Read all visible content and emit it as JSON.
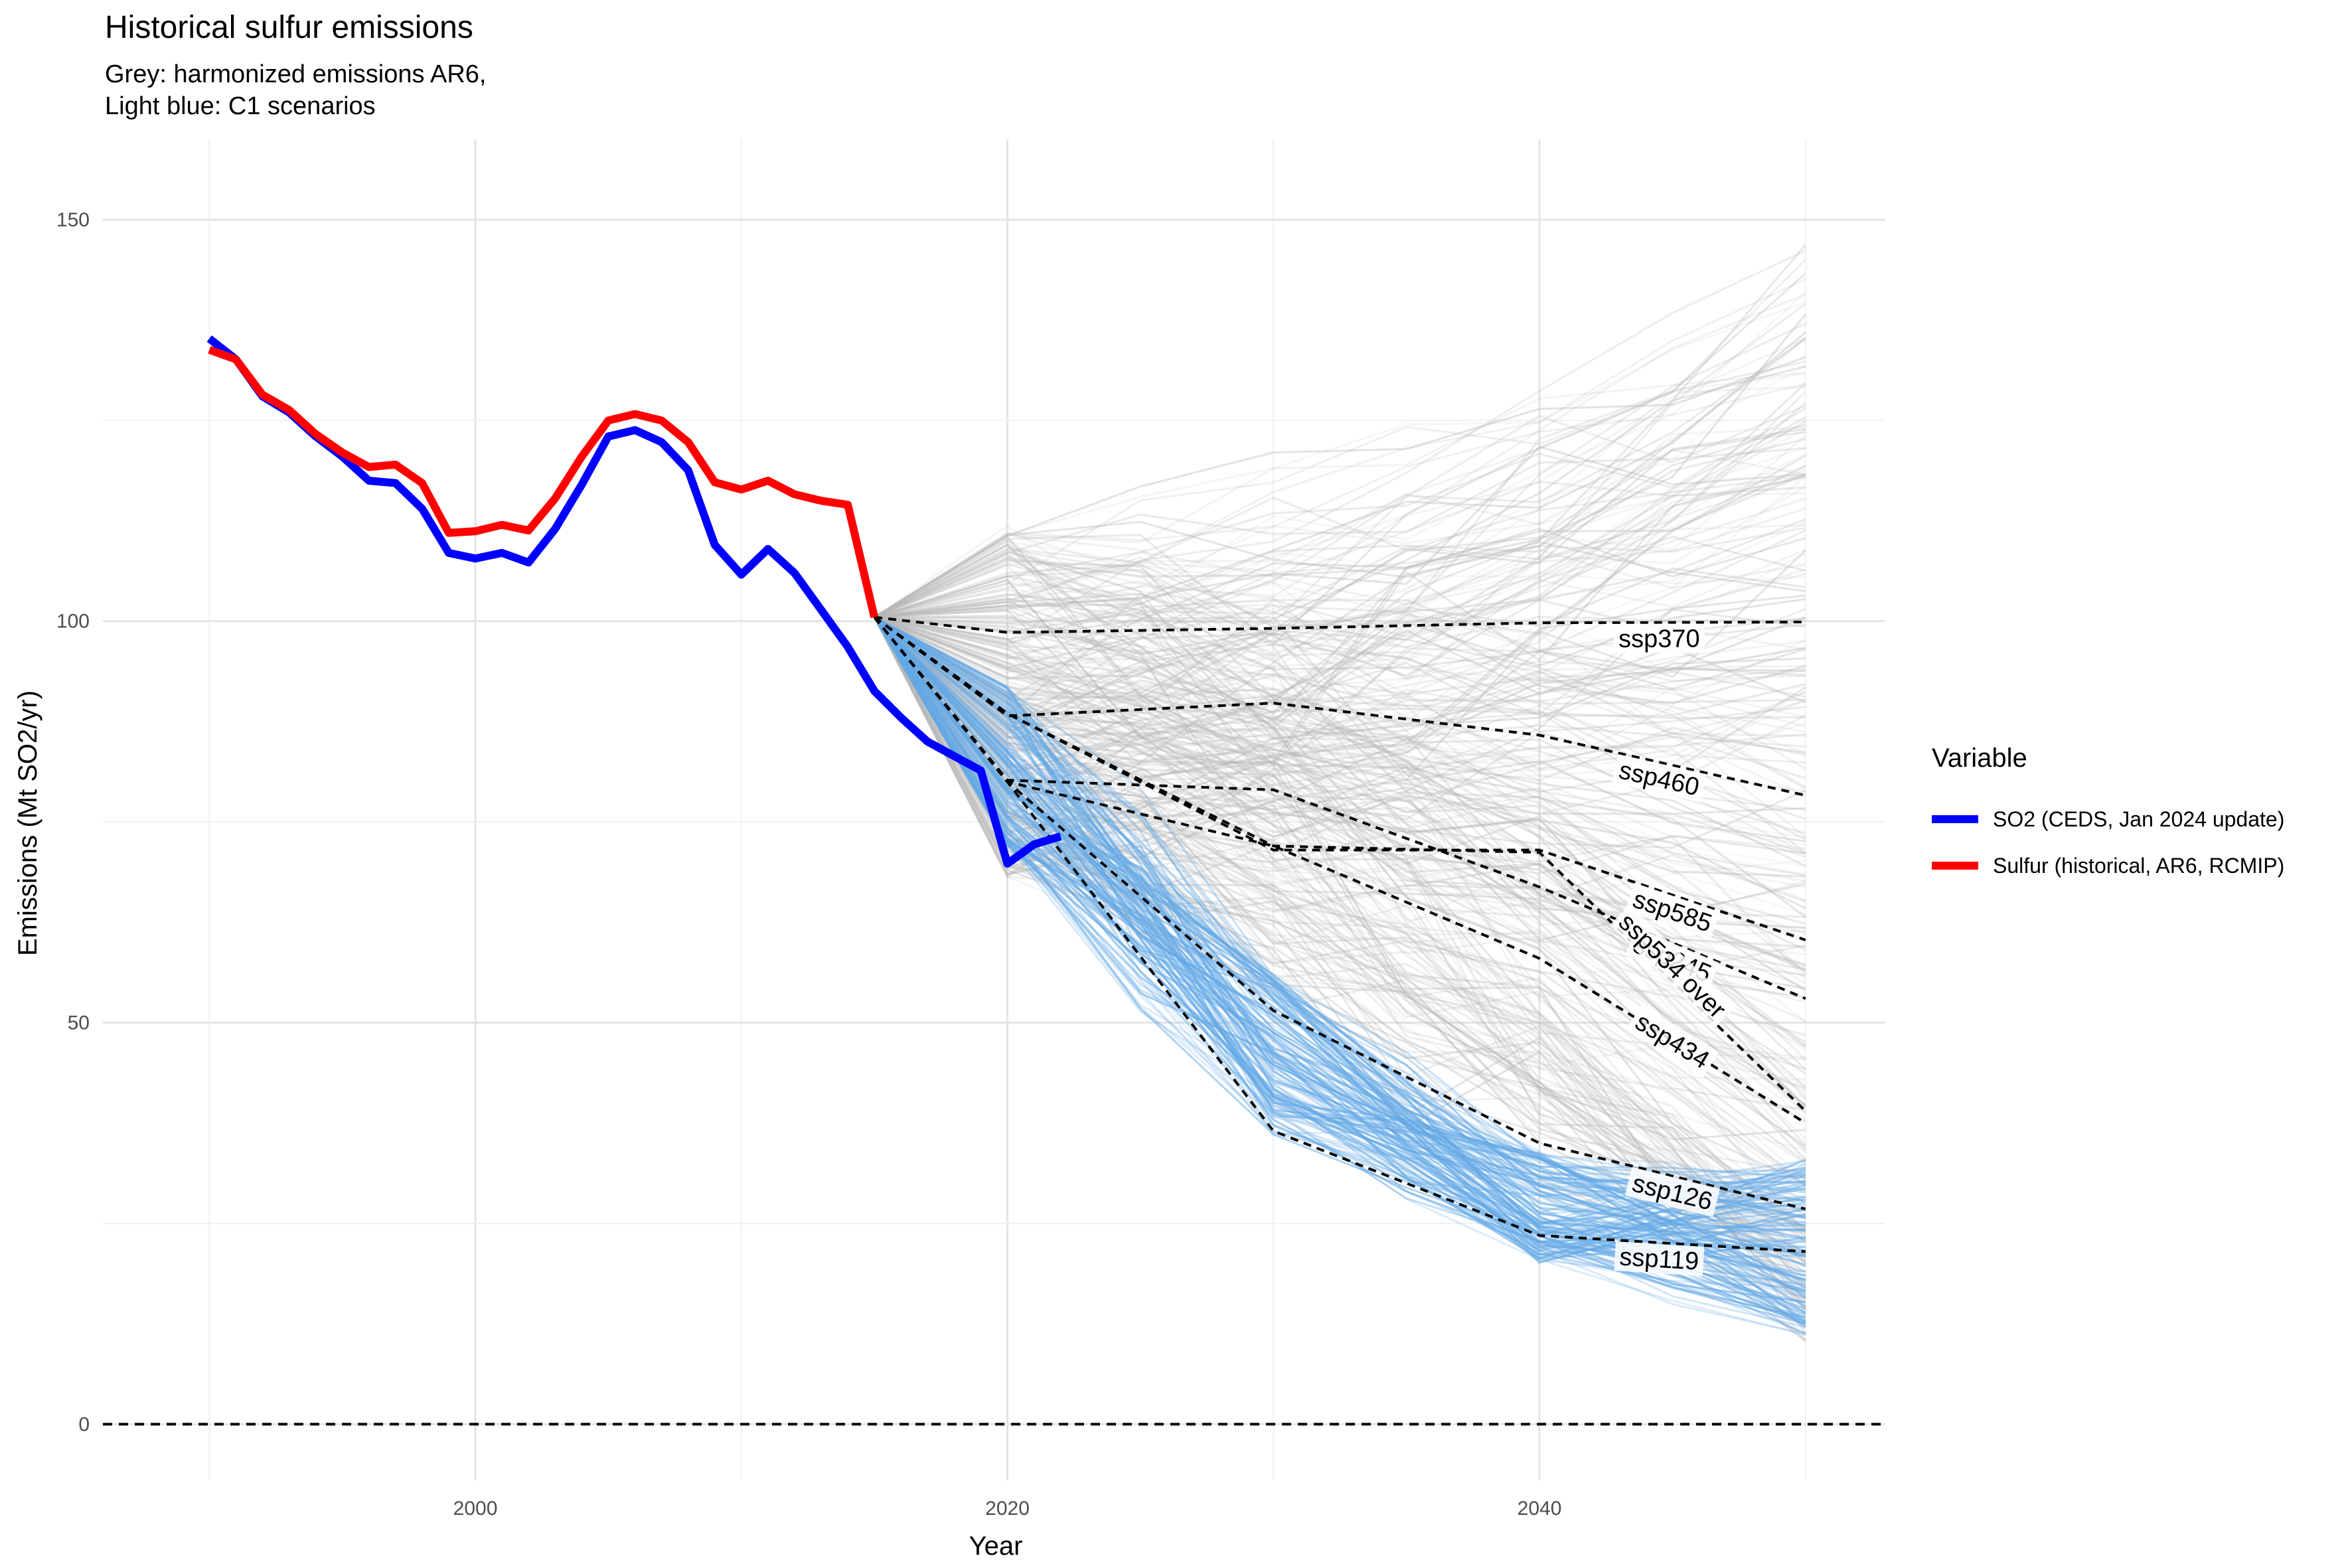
{
  "title": "Historical sulfur emissions",
  "subtitle_line1": "Grey: harmonized emissions AR6,",
  "subtitle_line2": "Light blue: C1 scenarios",
  "legend": {
    "title": "Variable",
    "items": [
      {
        "label": "SO2 (CEDS, Jan 2024 update)",
        "color": "#0000ff"
      },
      {
        "label": "Sulfur (historical, AR6, RCMIP)",
        "color": "#ff0000"
      }
    ]
  },
  "chart_data": {
    "type": "line",
    "xlabel": "Year",
    "ylabel": "Emissions (Mt SO2/yr)",
    "xlim": [
      1986,
      2053
    ],
    "ylim": [
      -7,
      160
    ],
    "x_ticks": [
      2000,
      2020,
      2040
    ],
    "y_ticks": [
      0,
      50,
      100,
      150
    ],
    "grid": true,
    "legend_position": "right",
    "reference_line": {
      "y": 0,
      "style": "dashed",
      "color": "#000000"
    },
    "series": [
      {
        "name": "SO2 (CEDS, Jan 2024 update)",
        "color": "#0000ff",
        "points": [
          [
            1990,
            135.2
          ],
          [
            1991,
            132.6
          ],
          [
            1992,
            128.0
          ],
          [
            1993,
            126.0
          ],
          [
            1994,
            123.0
          ],
          [
            1995,
            120.5
          ],
          [
            1996,
            117.5
          ],
          [
            1997,
            117.2
          ],
          [
            1998,
            114.0
          ],
          [
            1999,
            108.5
          ],
          [
            2000,
            107.8
          ],
          [
            2001,
            108.5
          ],
          [
            2002,
            107.3
          ],
          [
            2003,
            111.5
          ],
          [
            2004,
            117.0
          ],
          [
            2005,
            123.0
          ],
          [
            2006,
            123.8
          ],
          [
            2007,
            122.3
          ],
          [
            2008,
            118.8
          ],
          [
            2009,
            109.5
          ],
          [
            2010,
            105.8
          ],
          [
            2011,
            109.0
          ],
          [
            2012,
            106.0
          ],
          [
            2013,
            101.4
          ],
          [
            2014,
            96.8
          ],
          [
            2015,
            91.3
          ],
          [
            2016,
            88.0
          ],
          [
            2017,
            85.0
          ],
          [
            2018,
            83.2
          ],
          [
            2019,
            81.4
          ],
          [
            2020,
            69.8
          ],
          [
            2021,
            72.2
          ],
          [
            2022,
            73.2
          ]
        ]
      },
      {
        "name": "Sulfur (historical, AR6, RCMIP)",
        "color": "#ff0000",
        "points": [
          [
            1990,
            133.8
          ],
          [
            1991,
            132.6
          ],
          [
            1992,
            128.2
          ],
          [
            1993,
            126.3
          ],
          [
            1994,
            123.3
          ],
          [
            1995,
            121.0
          ],
          [
            1996,
            119.2
          ],
          [
            1997,
            119.5
          ],
          [
            1998,
            117.2
          ],
          [
            1999,
            111.0
          ],
          [
            2000,
            111.2
          ],
          [
            2001,
            112.0
          ],
          [
            2002,
            111.3
          ],
          [
            2003,
            115.3
          ],
          [
            2004,
            120.5
          ],
          [
            2005,
            125.0
          ],
          [
            2006,
            125.8
          ],
          [
            2007,
            125.0
          ],
          [
            2008,
            122.3
          ],
          [
            2009,
            117.3
          ],
          [
            2010,
            116.4
          ],
          [
            2011,
            117.5
          ],
          [
            2012,
            115.8
          ],
          [
            2013,
            115.0
          ],
          [
            2014,
            114.5
          ],
          [
            2015,
            100.5
          ]
        ]
      }
    ],
    "ssp_scenarios": [
      {
        "label": "ssp370",
        "points": [
          [
            2015,
            100.5
          ],
          [
            2020,
            98.6
          ],
          [
            2030,
            99.1
          ],
          [
            2040,
            99.8
          ],
          [
            2050,
            99.9
          ]
        ]
      },
      {
        "label": "ssp460",
        "points": [
          [
            2015,
            100.5
          ],
          [
            2020,
            88.2
          ],
          [
            2030,
            89.8
          ],
          [
            2040,
            85.8
          ],
          [
            2050,
            78.3
          ]
        ]
      },
      {
        "label": "ssp585",
        "points": [
          [
            2015,
            100.5
          ],
          [
            2020,
            88.5
          ],
          [
            2030,
            71.5
          ],
          [
            2040,
            71.5
          ],
          [
            2050,
            60.3
          ]
        ]
      },
      {
        "label": "ssp245",
        "points": [
          [
            2015,
            100.5
          ],
          [
            2020,
            80.2
          ],
          [
            2030,
            79.0
          ],
          [
            2040,
            66.9
          ],
          [
            2050,
            53.0
          ]
        ]
      },
      {
        "label": "ssp534 over",
        "points": [
          [
            2015,
            100.5
          ],
          [
            2020,
            88.5
          ],
          [
            2030,
            72.0
          ],
          [
            2040,
            71.2
          ],
          [
            2050,
            39.0
          ]
        ]
      },
      {
        "label": "ssp434",
        "points": [
          [
            2015,
            100.5
          ],
          [
            2020,
            80.0
          ],
          [
            2030,
            72.0
          ],
          [
            2040,
            58.0
          ],
          [
            2050,
            37.5
          ]
        ]
      },
      {
        "label": "ssp126",
        "points": [
          [
            2015,
            100.5
          ],
          [
            2020,
            80.0
          ],
          [
            2030,
            51.5
          ],
          [
            2040,
            35.0
          ],
          [
            2050,
            26.8
          ]
        ]
      },
      {
        "label": "ssp119",
        "points": [
          [
            2015,
            100.5
          ],
          [
            2020,
            80.0
          ],
          [
            2030,
            36.5
          ],
          [
            2040,
            23.5
          ],
          [
            2050,
            21.5
          ]
        ]
      }
    ],
    "ensembles": {
      "grey": {
        "description": "harmonized emissions AR6",
        "color": "#b8b8b8",
        "start_year": 2015,
        "start_value": 100.5
      },
      "light_blue": {
        "description": "C1 scenarios",
        "color": "#64a9e6",
        "start_year": 2015,
        "start_value": 100.5
      }
    }
  }
}
